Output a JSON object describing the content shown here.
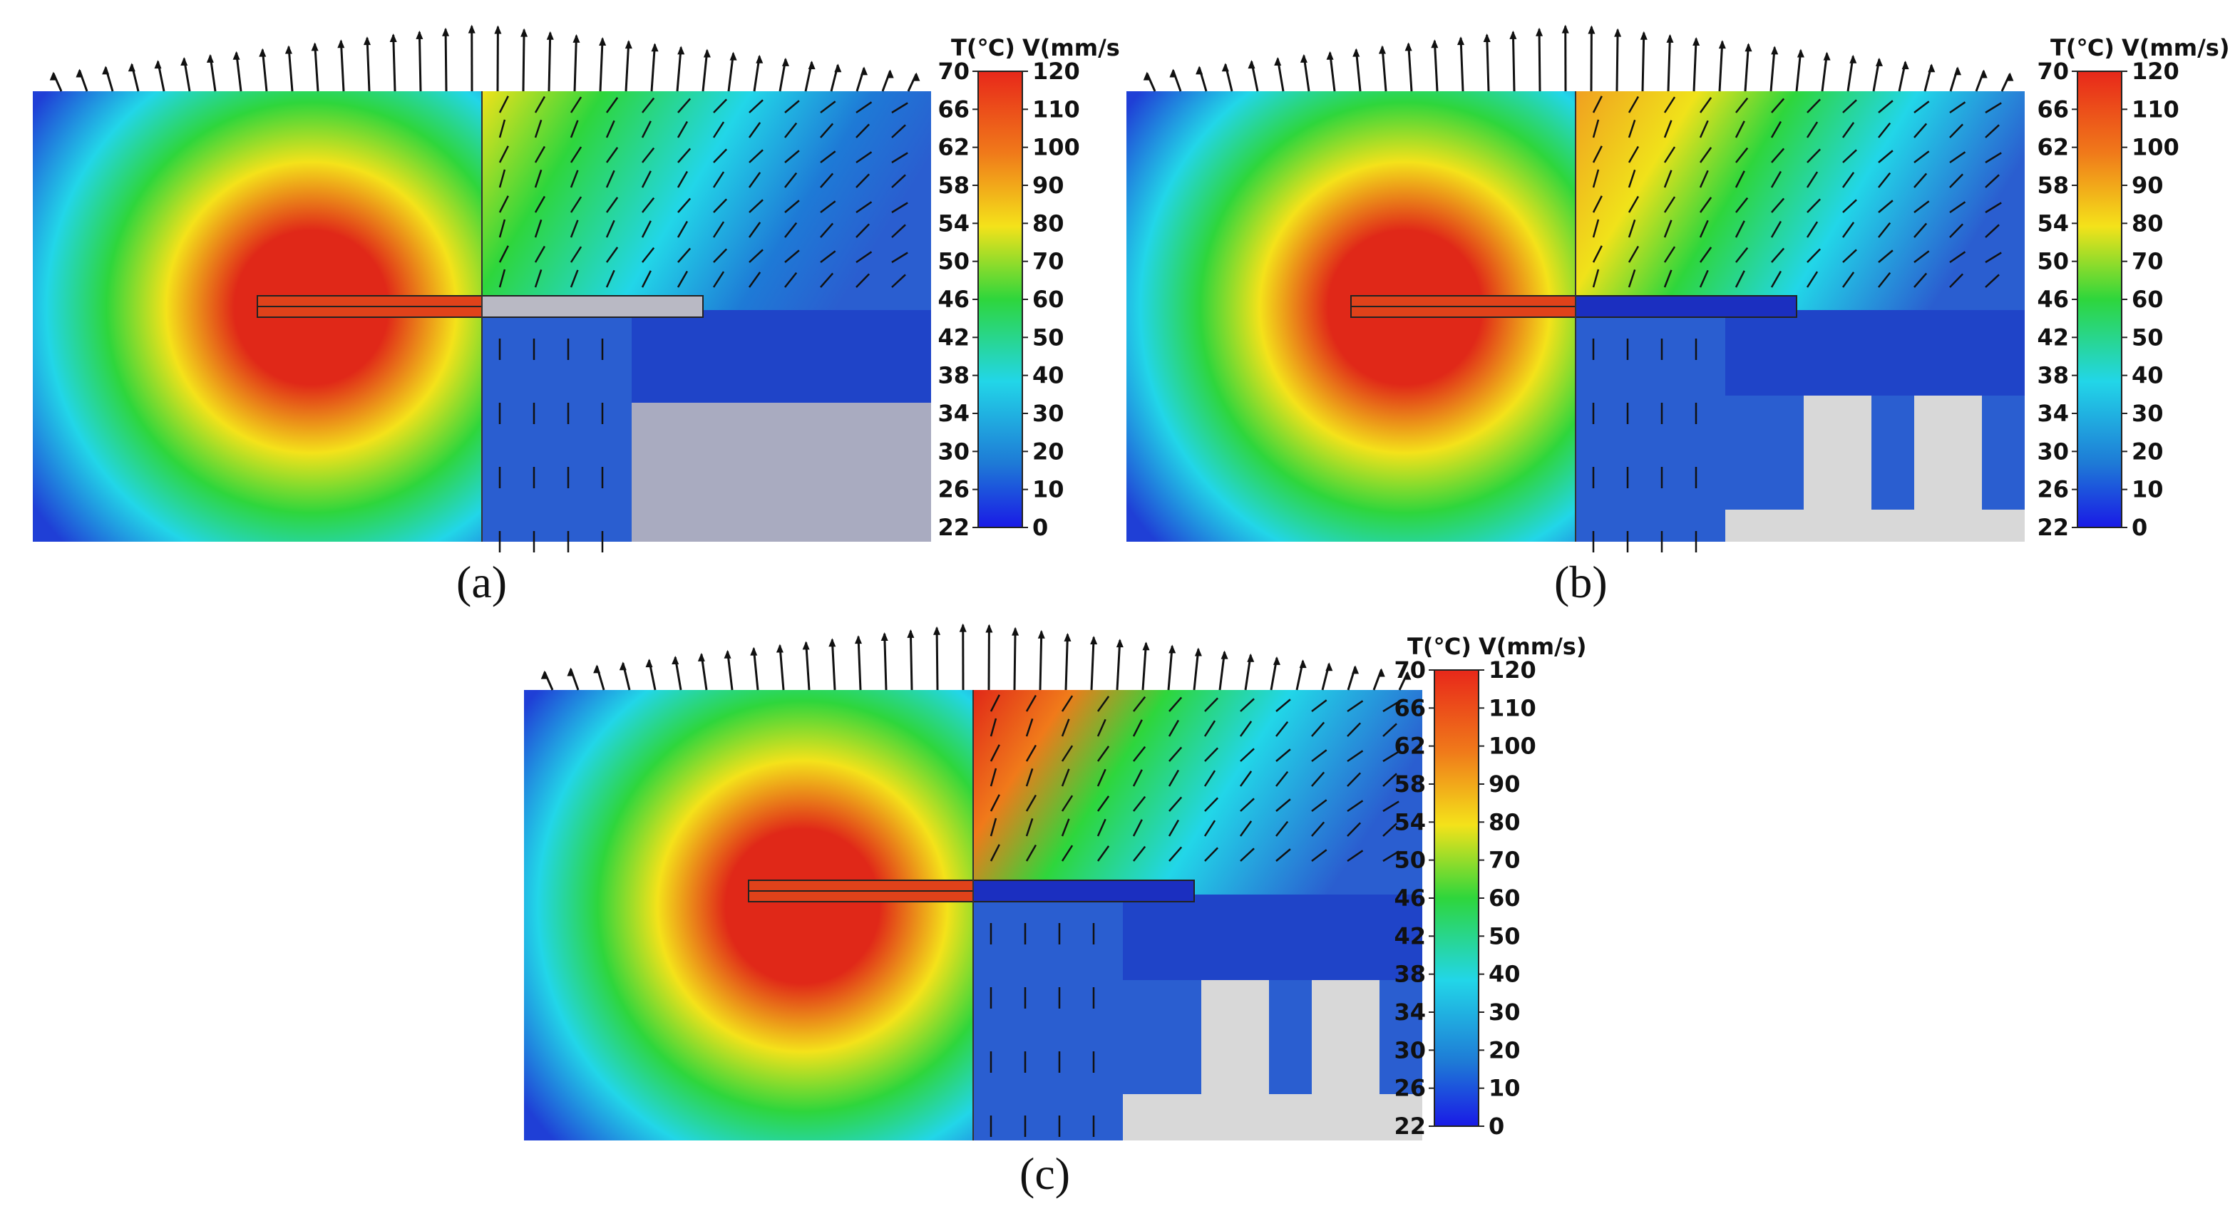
{
  "figure": {
    "panels": [
      {
        "id": "a",
        "label": "(a)",
        "variant": "flat-plate"
      },
      {
        "id": "b",
        "label": "(b)",
        "variant": "finned"
      },
      {
        "id": "c",
        "label": "(c)",
        "variant": "finned"
      }
    ],
    "colorbar": {
      "temperature_title": "T(℃)",
      "velocity_title": "V(mm/s)",
      "temperature_ticks": [
        "70",
        "66",
        "62",
        "58",
        "54",
        "50",
        "46",
        "42",
        "38",
        "34",
        "30",
        "26",
        "22"
      ],
      "velocity_ticks": [
        "120",
        "110",
        "100",
        "90",
        "80",
        "70",
        "60",
        "50",
        "40",
        "30",
        "20",
        "10",
        "0"
      ]
    },
    "colors": {
      "cold": "#1f3fd6",
      "warm_cyan": "#22d6e8",
      "green": "#2ed63c",
      "yellow": "#f4e21a",
      "hot": "#e02818",
      "solid_grey": "#a9abc0",
      "fin_grey": "#d8d8d8",
      "arrow": "#111111"
    }
  }
}
